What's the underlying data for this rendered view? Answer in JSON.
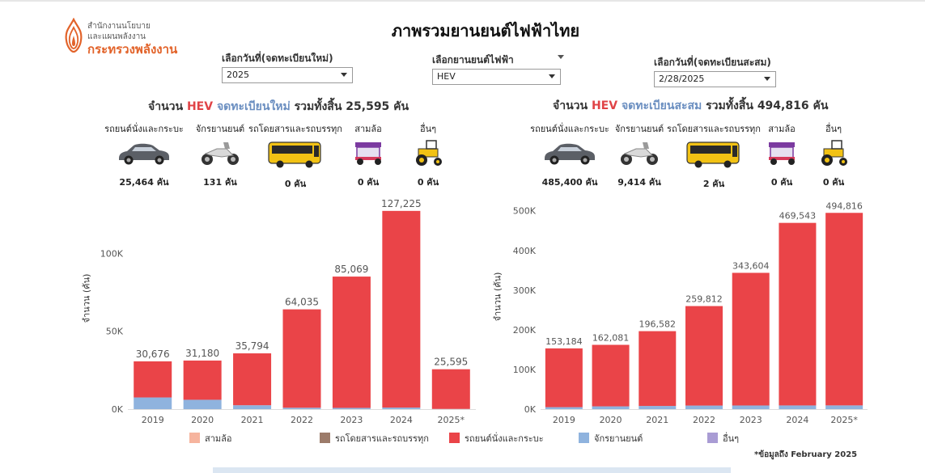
{
  "header": {
    "logo_line1": "สำนักงานนโยบาย",
    "logo_line2": "และแผนพลังงาน",
    "logo_line3": "กระทรวงพลังงาน",
    "title": "ภาพรวมยานยนต์ไฟฟ้าไทย"
  },
  "filters": {
    "new_date_label": "เลือกวันที่(จดทะเบียนใหม่)",
    "new_date_value": "2025",
    "ev_type_label": "เลือกยานยนต์ไฟฟ้า",
    "ev_type_value": "HEV",
    "cum_date_label": "เลือกวันที่(จดทะเบียนสะสม)",
    "cum_date_value": "2/28/2025"
  },
  "left_panel": {
    "heading_prefix": "จำนวน",
    "heading_type": "HEV",
    "heading_kind": "จดทะเบียนใหม่",
    "heading_suffix": "รวมทั้งสิ้น 25,595 คัน",
    "categories": [
      {
        "label": "รถยนต์นั่งและกระบะ",
        "count": "25,464 คัน"
      },
      {
        "label": "จักรยานยนต์",
        "count": "131 คัน"
      },
      {
        "label": "รถโดยสารและรถบรรทุก",
        "count": "0 คัน"
      },
      {
        "label": "สามล้อ",
        "count": "0 คัน"
      },
      {
        "label": "อื่นๆ",
        "count": "0 คัน"
      }
    ],
    "y_axis_title": "จำนวน (คัน)"
  },
  "right_panel": {
    "heading_prefix": "จำนวน",
    "heading_type": "HEV",
    "heading_kind": "จดทะเบียนสะสม",
    "heading_suffix": "รวมทั้งสิ้น 494,816 คัน",
    "categories": [
      {
        "label": "รถยนต์นั่งและกระบะ",
        "count": "485,400 คัน"
      },
      {
        "label": "จักรยานยนต์",
        "count": "9,414 คัน"
      },
      {
        "label": "รถโดยสารและรถบรรทุก",
        "count": "2 คัน"
      },
      {
        "label": "สามล้อ",
        "count": "0 คัน"
      },
      {
        "label": "อื่นๆ",
        "count": "0 คัน"
      }
    ],
    "y_axis_title": "จำนวน (คัน)"
  },
  "chart_data": [
    {
      "type": "bar",
      "stacked": true,
      "categories": [
        "2019",
        "2020",
        "2021",
        "2022",
        "2023",
        "2024",
        "2025*"
      ],
      "totals": [
        30676,
        31180,
        35794,
        64035,
        85069,
        127225,
        25595
      ],
      "total_labels": [
        "30,676",
        "31,180",
        "35,794",
        "64,035",
        "85,069",
        "127,225",
        "25,595"
      ],
      "series": [
        {
          "name": "จักรยานยนต์",
          "color": "#8fb3de",
          "values": [
            7500,
            6000,
            2500,
            900,
            800,
            1000,
            131
          ]
        },
        {
          "name": "รถยนต์นั่งและกระบะ",
          "color": "#ea4448",
          "values": [
            23176,
            25180,
            33294,
            63135,
            84269,
            126225,
            25464
          ]
        }
      ],
      "ylim": [
        0,
        137000
      ],
      "yticks": [
        0,
        50000,
        100000
      ],
      "ytick_labels": [
        "0K",
        "50K",
        "100K"
      ],
      "ylabel": "จำนวน (คัน)",
      "grid": false
    },
    {
      "type": "bar",
      "stacked": true,
      "categories": [
        "2019",
        "2020",
        "2021",
        "2022",
        "2023",
        "2024",
        "2025*"
      ],
      "totals": [
        153184,
        162081,
        196582,
        259812,
        343604,
        469543,
        494816
      ],
      "total_labels": [
        "153,184",
        "162,081",
        "196,582",
        "259,812",
        "343,604",
        "469,543",
        "494,816"
      ],
      "series": [
        {
          "name": "จักรยานยนต์",
          "color": "#8fb3de",
          "values": [
            5000,
            7000,
            8000,
            9000,
            9200,
            9300,
            9414
          ]
        },
        {
          "name": "รถยนต์นั่งและกระบะ",
          "color": "#ea4448",
          "values": [
            148184,
            155081,
            188582,
            250812,
            334404,
            460243,
            485400
          ]
        }
      ],
      "ylim": [
        0,
        530000
      ],
      "yticks": [
        0,
        100000,
        200000,
        300000,
        400000,
        500000
      ],
      "ytick_labels": [
        "0K",
        "100K",
        "200K",
        "300K",
        "400K",
        "500K"
      ],
      "ylabel": "จำนวน (คัน)",
      "grid": false
    }
  ],
  "legend": [
    {
      "label": "สามล้อ",
      "color": "#f6b49e"
    },
    {
      "label": "รถโดยสารและรถบรรทุก",
      "color": "#9c7b6a"
    },
    {
      "label": "รถยนต์นั่งและกระบะ",
      "color": "#ea4448"
    },
    {
      "label": "จักรยานยนต์",
      "color": "#8fb3de"
    },
    {
      "label": "อื่นๆ",
      "color": "#a99cd4"
    }
  ],
  "footnote": "*ข้อมูลถึง February 2025",
  "icons": [
    "flame-logo-icon",
    "car-icon",
    "motorcycle-icon",
    "bus-icon",
    "tuk-tuk-icon",
    "tractor-icon",
    "caret-down-icon"
  ]
}
